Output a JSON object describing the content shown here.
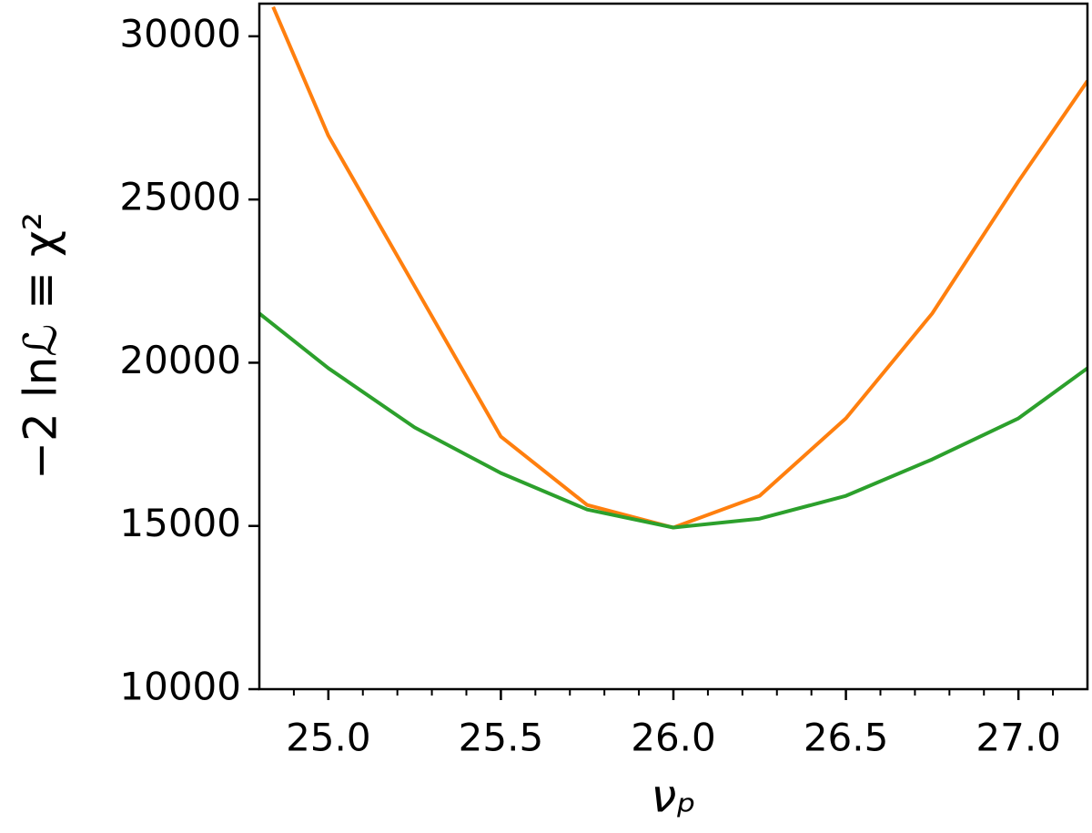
{
  "chart_data": {
    "type": "line",
    "xlabel": "νₚ",
    "ylabel": "−2 lnℒ ≡ χ²",
    "xlim": [
      24.8,
      27.2
    ],
    "ylim": [
      10000,
      31000
    ],
    "xticks": [
      {
        "value": 25,
        "label": "25.0"
      },
      {
        "value": 25.5,
        "label": "25.5"
      },
      {
        "value": 26,
        "label": "26.0"
      },
      {
        "value": 26.5,
        "label": "26.5"
      },
      {
        "value": 27,
        "label": "27.0"
      }
    ],
    "xminorticks": [
      24.9,
      25.1,
      25.2,
      25.3,
      25.4,
      25.6,
      25.7,
      25.8,
      25.9,
      26.1,
      26.2,
      26.3,
      26.4,
      26.6,
      26.7,
      26.8,
      26.9,
      27.1
    ],
    "yticks": [
      10000,
      15000,
      20000,
      25000,
      30000
    ],
    "grid": false,
    "series": [
      {
        "color": "#ff7f0e",
        "x": [
          24.84,
          25.0,
          25.25,
          25.5,
          25.75,
          26.0,
          26.25,
          26.5,
          26.75,
          27.0,
          27.2
        ],
        "values": [
          30900,
          26955,
          22346,
          17737,
          15642,
          14950,
          15922,
          18296,
          21508,
          25559,
          28631
        ]
      },
      {
        "color": "#2ca02c",
        "x": [
          24.8,
          25.0,
          25.25,
          25.5,
          25.75,
          26.0,
          26.25,
          26.5,
          26.75,
          27.0,
          27.2
        ],
        "values": [
          21508,
          19832,
          18017,
          16620,
          15503,
          14950,
          15223,
          15922,
          17039,
          18296,
          19832
        ]
      }
    ]
  }
}
